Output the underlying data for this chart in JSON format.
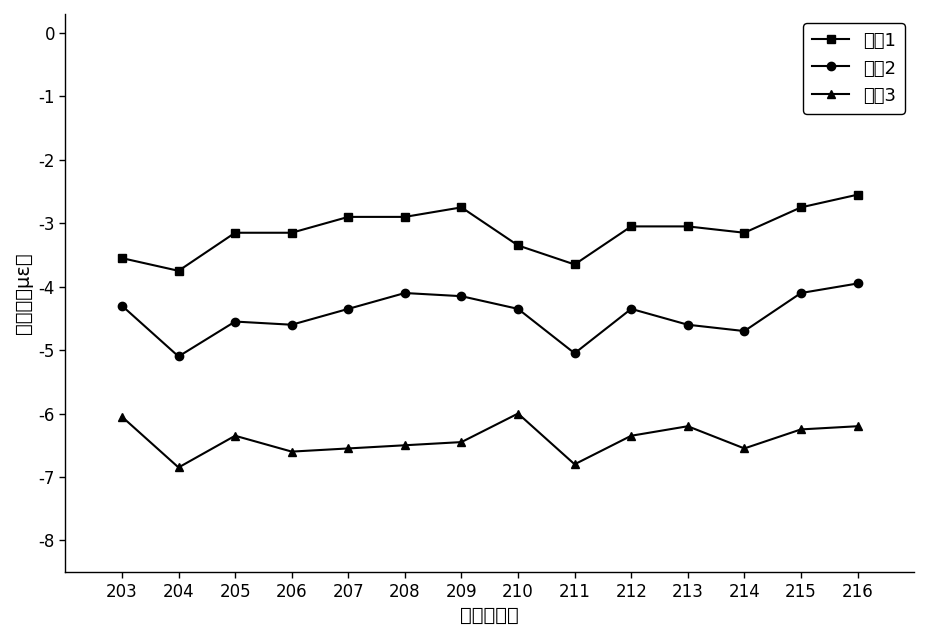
{
  "x": [
    203,
    204,
    205,
    206,
    207,
    208,
    209,
    210,
    211,
    212,
    213,
    214,
    215,
    216
  ],
  "series1": [
    -3.55,
    -3.75,
    -3.15,
    -3.15,
    -2.9,
    -2.9,
    -2.75,
    -3.35,
    -3.65,
    -3.05,
    -3.05,
    -3.15,
    -2.75,
    -2.55
  ],
  "series2": [
    -4.3,
    -5.1,
    -4.55,
    -4.6,
    -4.35,
    -4.1,
    -4.15,
    -4.35,
    -5.05,
    -4.35,
    -4.6,
    -4.7,
    -4.1,
    -3.95
  ],
  "series3": [
    -6.05,
    -6.85,
    -6.35,
    -6.6,
    -6.55,
    -6.5,
    -6.45,
    -6.0,
    -6.8,
    -6.35,
    -6.2,
    -6.55,
    -6.25,
    -6.2
  ],
  "legend_labels": [
    "工况1",
    "工况2",
    "工况3"
  ],
  "xlabel": "应变计编号",
  "ylabel": "微应变（με）",
  "ylim": [
    -8.5,
    0.3
  ],
  "yticks": [
    -8,
    -7,
    -6,
    -5,
    -4,
    -3,
    -2,
    -1,
    0
  ],
  "color1": "#000000",
  "color2": "#000000",
  "color3": "#000000",
  "marker1": "s",
  "marker2": "o",
  "marker3": "^",
  "linewidth": 1.5,
  "markersize": 6,
  "bg_color": "#ffffff",
  "label_fontsize": 14,
  "tick_fontsize": 12,
  "legend_fontsize": 13
}
